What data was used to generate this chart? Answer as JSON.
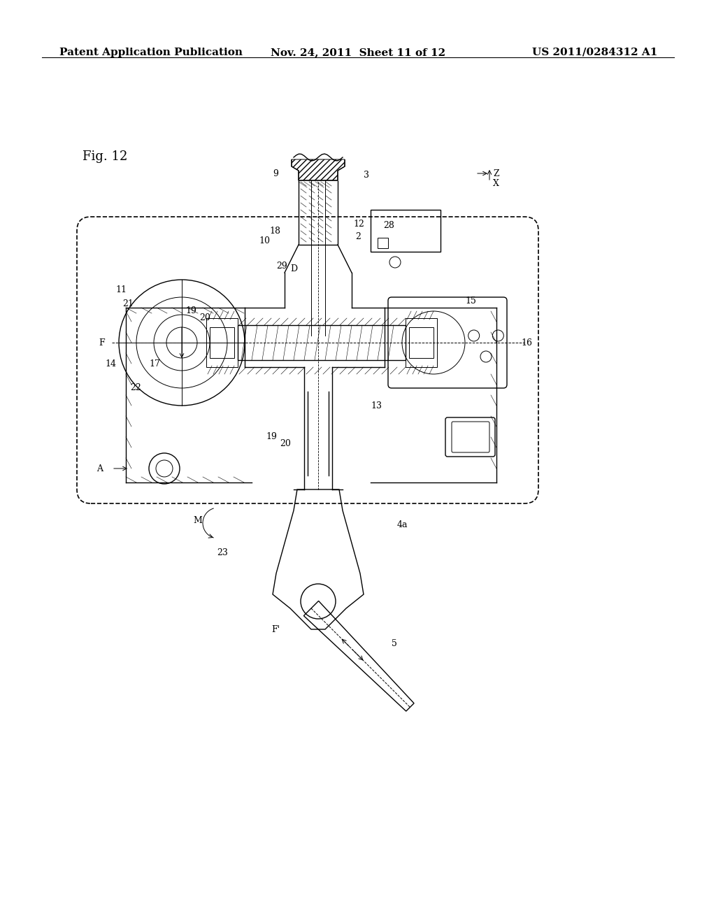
{
  "title_left": "Patent Application Publication",
  "title_center": "Nov. 24, 2011  Sheet 11 of 12",
  "title_right": "US 2011/0284312 A1",
  "fig_label": "Fig. 12",
  "background_color": "#ffffff",
  "line_color": "#000000",
  "hatch_color": "#000000",
  "header_fontsize": 11,
  "fig_label_fontsize": 13,
  "annotation_fontsize": 9
}
